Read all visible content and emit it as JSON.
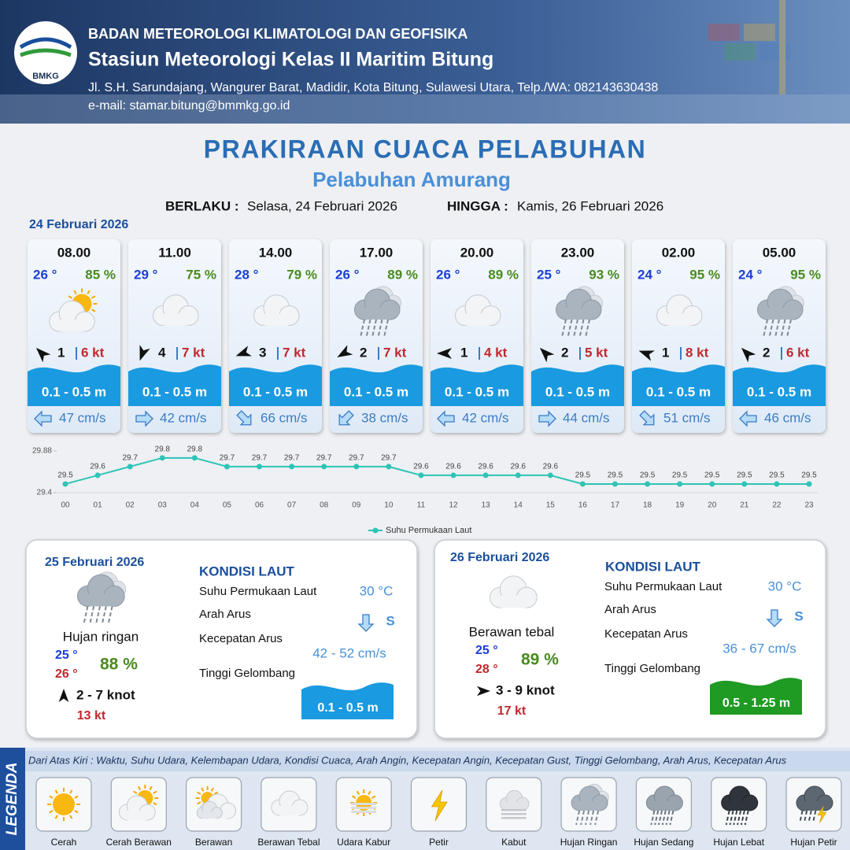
{
  "header": {
    "agency": "BADAN METEOROLOGI KLIMATOLOGI DAN GEOFISIKA",
    "station": "Stasiun Meteorologi Kelas II Maritim Bitung",
    "address": "Jl. S.H. Sarundajang, Wangurer Barat, Madidir, Kota Bitung, Sulawesi Utara, Telp./WA: 082143630438",
    "email": "e-mail: stamar.bitung@bmmkg.go.id",
    "logo_text": "BMKG"
  },
  "title": "PRAKIRAAN CUACA PELABUHAN",
  "subtitle": "Pelabuhan Amurang",
  "validity": {
    "from_label": "BERLAKU :",
    "from": "Selasa, 24 Februari 2026",
    "to_label": "HINGGA :",
    "to": "Kamis, 26 Februari 2026"
  },
  "day1": {
    "date": "24 Februari 2026",
    "cards": [
      {
        "time": "08.00",
        "temp": "26 °",
        "humidity": "85 %",
        "icon": "cerah-berawan",
        "wind_dir": 315,
        "wind": 1,
        "gust": "6 kt",
        "wave": "0.1 - 0.5 m",
        "current_dir": 270,
        "current": "47 cm/s"
      },
      {
        "time": "11.00",
        "temp": "29 °",
        "humidity": "75 %",
        "icon": "berawan-tebal",
        "wind_dir": 200,
        "wind": 4,
        "gust": "7 kt",
        "wave": "0.1 - 0.5 m",
        "current_dir": 90,
        "current": "42 cm/s"
      },
      {
        "time": "14.00",
        "temp": "28 °",
        "humidity": "79 %",
        "icon": "berawan-tebal",
        "wind_dir": 250,
        "wind": 3,
        "gust": "7 kt",
        "wave": "0.1 - 0.5 m",
        "current_dir": 135,
        "current": "66 cm/s"
      },
      {
        "time": "17.00",
        "temp": "26 °",
        "humidity": "89 %",
        "icon": "hujan-ringan",
        "wind_dir": 240,
        "wind": 2,
        "gust": "7 kt",
        "wave": "0.1 - 0.5 m",
        "current_dir": 225,
        "current": "38 cm/s"
      },
      {
        "time": "20.00",
        "temp": "26 °",
        "humidity": "89 %",
        "icon": "berawan-tebal",
        "wind_dir": 270,
        "wind": 1,
        "gust": "4 kt",
        "wave": "0.1 - 0.5 m",
        "current_dir": 270,
        "current": "42 cm/s"
      },
      {
        "time": "23.00",
        "temp": "25 °",
        "humidity": "93 %",
        "icon": "hujan-ringan",
        "wind_dir": 315,
        "wind": 2,
        "gust": "5 kt",
        "wave": "0.1 - 0.5 m",
        "current_dir": 90,
        "current": "44 cm/s"
      },
      {
        "time": "02.00",
        "temp": "24 °",
        "humidity": "95 %",
        "icon": "berawan-tebal",
        "wind_dir": 290,
        "wind": 1,
        "gust": "8 kt",
        "wave": "0.1 - 0.5 m",
        "current_dir": 135,
        "current": "51 cm/s"
      },
      {
        "time": "05.00",
        "temp": "24 °",
        "humidity": "95 %",
        "icon": "hujan-ringan",
        "wind_dir": 315,
        "wind": 2,
        "gust": "6 kt",
        "wave": "0.1 - 0.5 m",
        "current_dir": 270,
        "current": "46 cm/s"
      }
    ]
  },
  "chart_data": {
    "type": "line",
    "categories": [
      "00",
      "01",
      "02",
      "03",
      "04",
      "05",
      "06",
      "07",
      "08",
      "09",
      "10",
      "11",
      "12",
      "13",
      "14",
      "15",
      "16",
      "17",
      "18",
      "19",
      "20",
      "21",
      "22",
      "23"
    ],
    "series": [
      {
        "name": "Suhu Permukaan Laut",
        "color": "#2ec4b6",
        "values": [
          29.5,
          29.6,
          29.7,
          29.8,
          29.8,
          29.7,
          29.7,
          29.7,
          29.7,
          29.7,
          29.7,
          29.6,
          29.6,
          29.6,
          29.6,
          29.6,
          29.5,
          29.5,
          29.5,
          29.5,
          29.5,
          29.5,
          29.5,
          29.5
        ]
      }
    ],
    "ylim": [
      29.4,
      29.88
    ],
    "yticks": [
      29.4,
      29.88
    ]
  },
  "days": [
    {
      "date": "25 Februari 2026",
      "icon": "hujan-ringan",
      "condition": "Hujan ringan",
      "temp_min": "25 °",
      "temp_max": "26 °",
      "humidity": "88 %",
      "wind_dir": 0,
      "wind": "2  - 7 knot",
      "gust": "13 kt",
      "sea_heading": "KONDISI LAUT",
      "sst_label": "Suhu Permukaan Laut",
      "sst": "30 °C",
      "current_dir_label": "Arah Arus",
      "current_dir": "S",
      "current_label": "Kecepatan Arus",
      "current": "42 - 52 cm/s",
      "wave_label": "Tinggi Gelombang",
      "wave": "0.1 - 0.5 m",
      "wave_color": "#1a9ae0"
    },
    {
      "date": "26 Februari 2026",
      "icon": "berawan-tebal",
      "condition": "Berawan tebal",
      "temp_min": "25 °",
      "temp_max": "28 °",
      "humidity": "89 %",
      "wind_dir": 90,
      "wind": "3 - 9 knot",
      "gust": "17 kt",
      "sea_heading": "KONDISI LAUT",
      "sst_label": "Suhu Permukaan Laut",
      "sst": "30 °C",
      "current_dir_label": "Arah Arus",
      "current_dir": "S",
      "current_label": "Kecepatan Arus",
      "current": "36 - 67 cm/s",
      "wave_label": "Tinggi Gelombang",
      "wave": "0.5 - 1.25 m",
      "wave_color": "#1f9a22"
    }
  ],
  "legend": {
    "title": "LEGENDA",
    "note": "Dari Atas Kiri : Waktu, Suhu Udara, Kelembapan Udara, Kondisi Cuaca, Arah Angin, Kecepatan Angin, Kecepatan Gust, Tinggi Gelombang, Arah Arus, Kecepatan Arus",
    "items": [
      {
        "icon": "cerah",
        "label": "Cerah"
      },
      {
        "icon": "cerah-berawan",
        "label": "Cerah Berawan"
      },
      {
        "icon": "berawan",
        "label": "Berawan"
      },
      {
        "icon": "berawan-tebal",
        "label": "Berawan Tebal"
      },
      {
        "icon": "udara-kabur",
        "label": "Udara Kabur"
      },
      {
        "icon": "petir",
        "label": "Petir"
      },
      {
        "icon": "kabut",
        "label": "Kabut"
      },
      {
        "icon": "hujan-ringan",
        "label": "Hujan Ringan"
      },
      {
        "icon": "hujan-sedang",
        "label": "Hujan Sedang"
      },
      {
        "icon": "hujan-lebat",
        "label": "Hujan Lebat"
      },
      {
        "icon": "hujan-petir",
        "label": "Hujan Petir"
      }
    ]
  }
}
